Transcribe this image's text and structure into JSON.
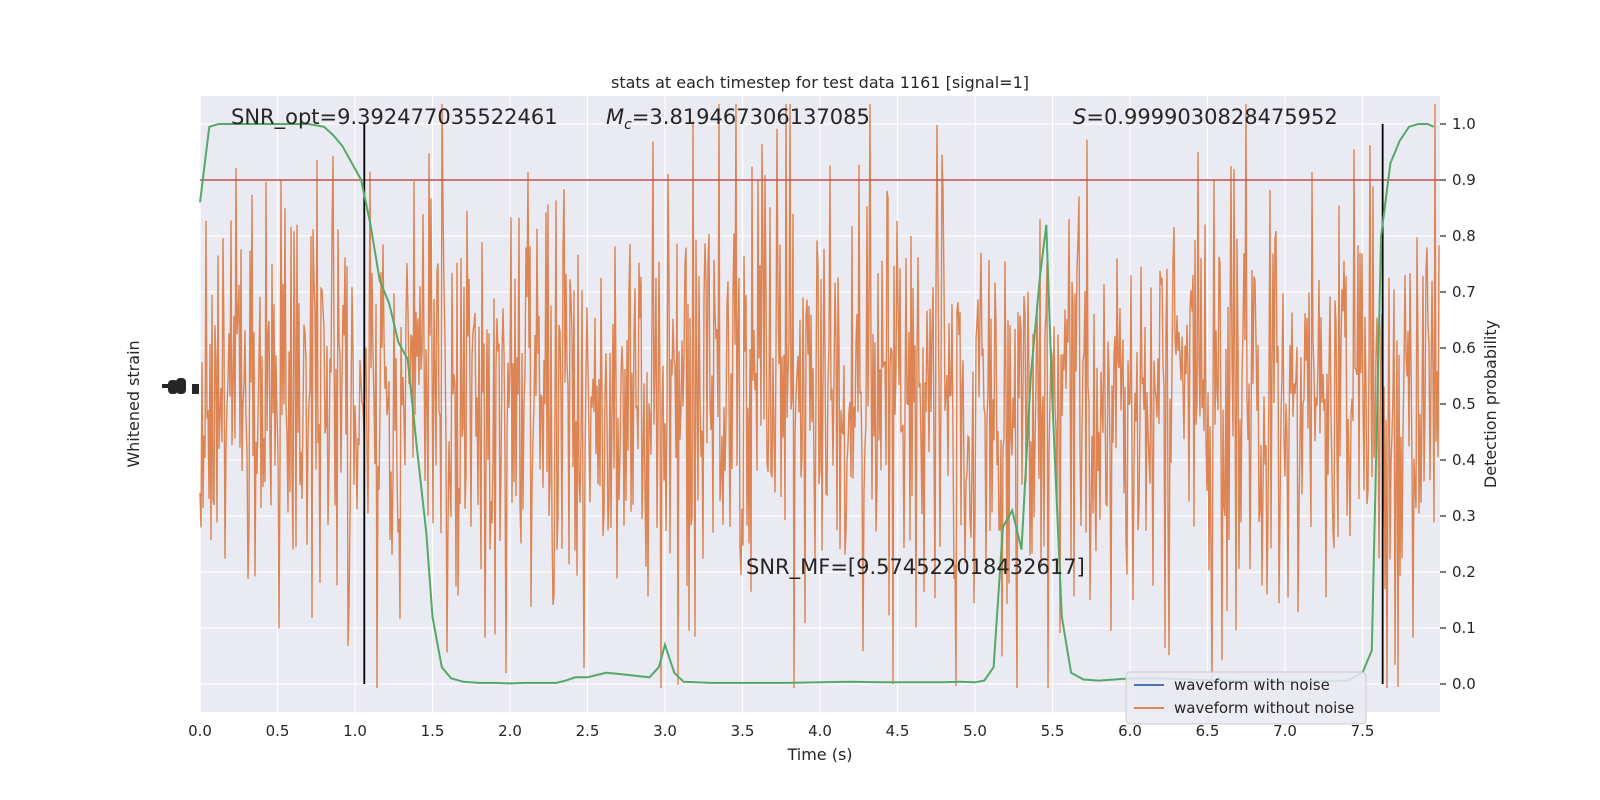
{
  "chart_data": {
    "type": "line",
    "title": "stats at each timestep for test data 1161 [signal=1]",
    "xlabel": "Time (s)",
    "ylabel_left": "Whitened strain",
    "ylabel_right": "Detection probability",
    "xlim": [
      0,
      8
    ],
    "ylim_right": [
      -0.05,
      1.05
    ],
    "x_ticks": [
      "0.0",
      "0.5",
      "1.0",
      "1.5",
      "2.0",
      "2.5",
      "3.0",
      "3.5",
      "4.0",
      "4.5",
      "5.0",
      "5.5",
      "6.0",
      "6.5",
      "7.0",
      "7.5"
    ],
    "x_tick_values": [
      0,
      0.5,
      1,
      1.5,
      2,
      2.5,
      3,
      3.5,
      4,
      4.5,
      5,
      5.5,
      6,
      6.5,
      7,
      7.5
    ],
    "y_right_ticks": [
      "0.0",
      "0.1",
      "0.2",
      "0.3",
      "0.4",
      "0.5",
      "0.6",
      "0.7",
      "0.8",
      "0.9",
      "1.0"
    ],
    "y_right_tick_values": [
      0,
      0.1,
      0.2,
      0.3,
      0.4,
      0.5,
      0.6,
      0.7,
      0.8,
      0.9,
      1.0
    ],
    "grid": true,
    "legend_position": "lower-right",
    "annotations": {
      "snr_opt": "SNR_opt=9.392477035522461",
      "mc_symbol": "M",
      "mc_sub": "c",
      "mc_value": "=3.819467306137085",
      "s_symbol": "S",
      "s_value": "=0.9999030828475952",
      "snr_mf": "SNR_MF=[9.574522018432617]"
    },
    "threshold": 0.9,
    "vertical_lines": [
      1.06,
      7.63
    ],
    "series": [
      {
        "name": "waveform with noise",
        "color": "#4c72b0",
        "kind": "strain"
      },
      {
        "name": "waveform without noise",
        "color": "#dd8452",
        "kind": "strain"
      },
      {
        "name": "",
        "color": "#55a868",
        "kind": "probability",
        "x": [
          0.0,
          0.06,
          0.12,
          0.2,
          0.3,
          0.4,
          0.5,
          0.6,
          0.7,
          0.8,
          0.86,
          0.92,
          0.98,
          1.04,
          1.1,
          1.16,
          1.22,
          1.28,
          1.34,
          1.4,
          1.46,
          1.5,
          1.56,
          1.62,
          1.7,
          1.8,
          1.9,
          2.0,
          2.1,
          2.2,
          2.3,
          2.36,
          2.42,
          2.5,
          2.56,
          2.62,
          2.7,
          2.8,
          2.9,
          2.96,
          3.0,
          3.06,
          3.12,
          3.2,
          3.3,
          3.4,
          3.6,
          3.8,
          4.0,
          4.2,
          4.4,
          4.6,
          4.8,
          4.9,
          5.0,
          5.06,
          5.12,
          5.18,
          5.24,
          5.3,
          5.36,
          5.42,
          5.46,
          5.5,
          5.56,
          5.62,
          5.7,
          5.8,
          5.9,
          6.0,
          6.2,
          6.4,
          6.6,
          6.8,
          7.0,
          7.2,
          7.4,
          7.5,
          7.56,
          7.62,
          7.68,
          7.74,
          7.8,
          7.86,
          7.92,
          7.96
        ],
        "y": [
          0.86,
          0.995,
          1.0,
          1.0,
          1.0,
          1.0,
          1.0,
          1.0,
          1.0,
          0.995,
          0.98,
          0.96,
          0.93,
          0.9,
          0.82,
          0.72,
          0.68,
          0.61,
          0.58,
          0.42,
          0.27,
          0.12,
          0.03,
          0.01,
          0.004,
          0.002,
          0.002,
          0.001,
          0.002,
          0.002,
          0.002,
          0.006,
          0.012,
          0.012,
          0.016,
          0.02,
          0.018,
          0.015,
          0.012,
          0.03,
          0.07,
          0.02,
          0.004,
          0.003,
          0.002,
          0.002,
          0.002,
          0.002,
          0.003,
          0.004,
          0.003,
          0.003,
          0.003,
          0.004,
          0.003,
          0.006,
          0.03,
          0.28,
          0.31,
          0.24,
          0.55,
          0.73,
          0.82,
          0.5,
          0.12,
          0.02,
          0.008,
          0.006,
          0.008,
          0.01,
          0.01,
          0.008,
          0.006,
          0.005,
          0.004,
          0.005,
          0.006,
          0.02,
          0.06,
          0.8,
          0.93,
          0.97,
          0.995,
          1.0,
          1.0,
          0.995
        ]
      }
    ]
  }
}
